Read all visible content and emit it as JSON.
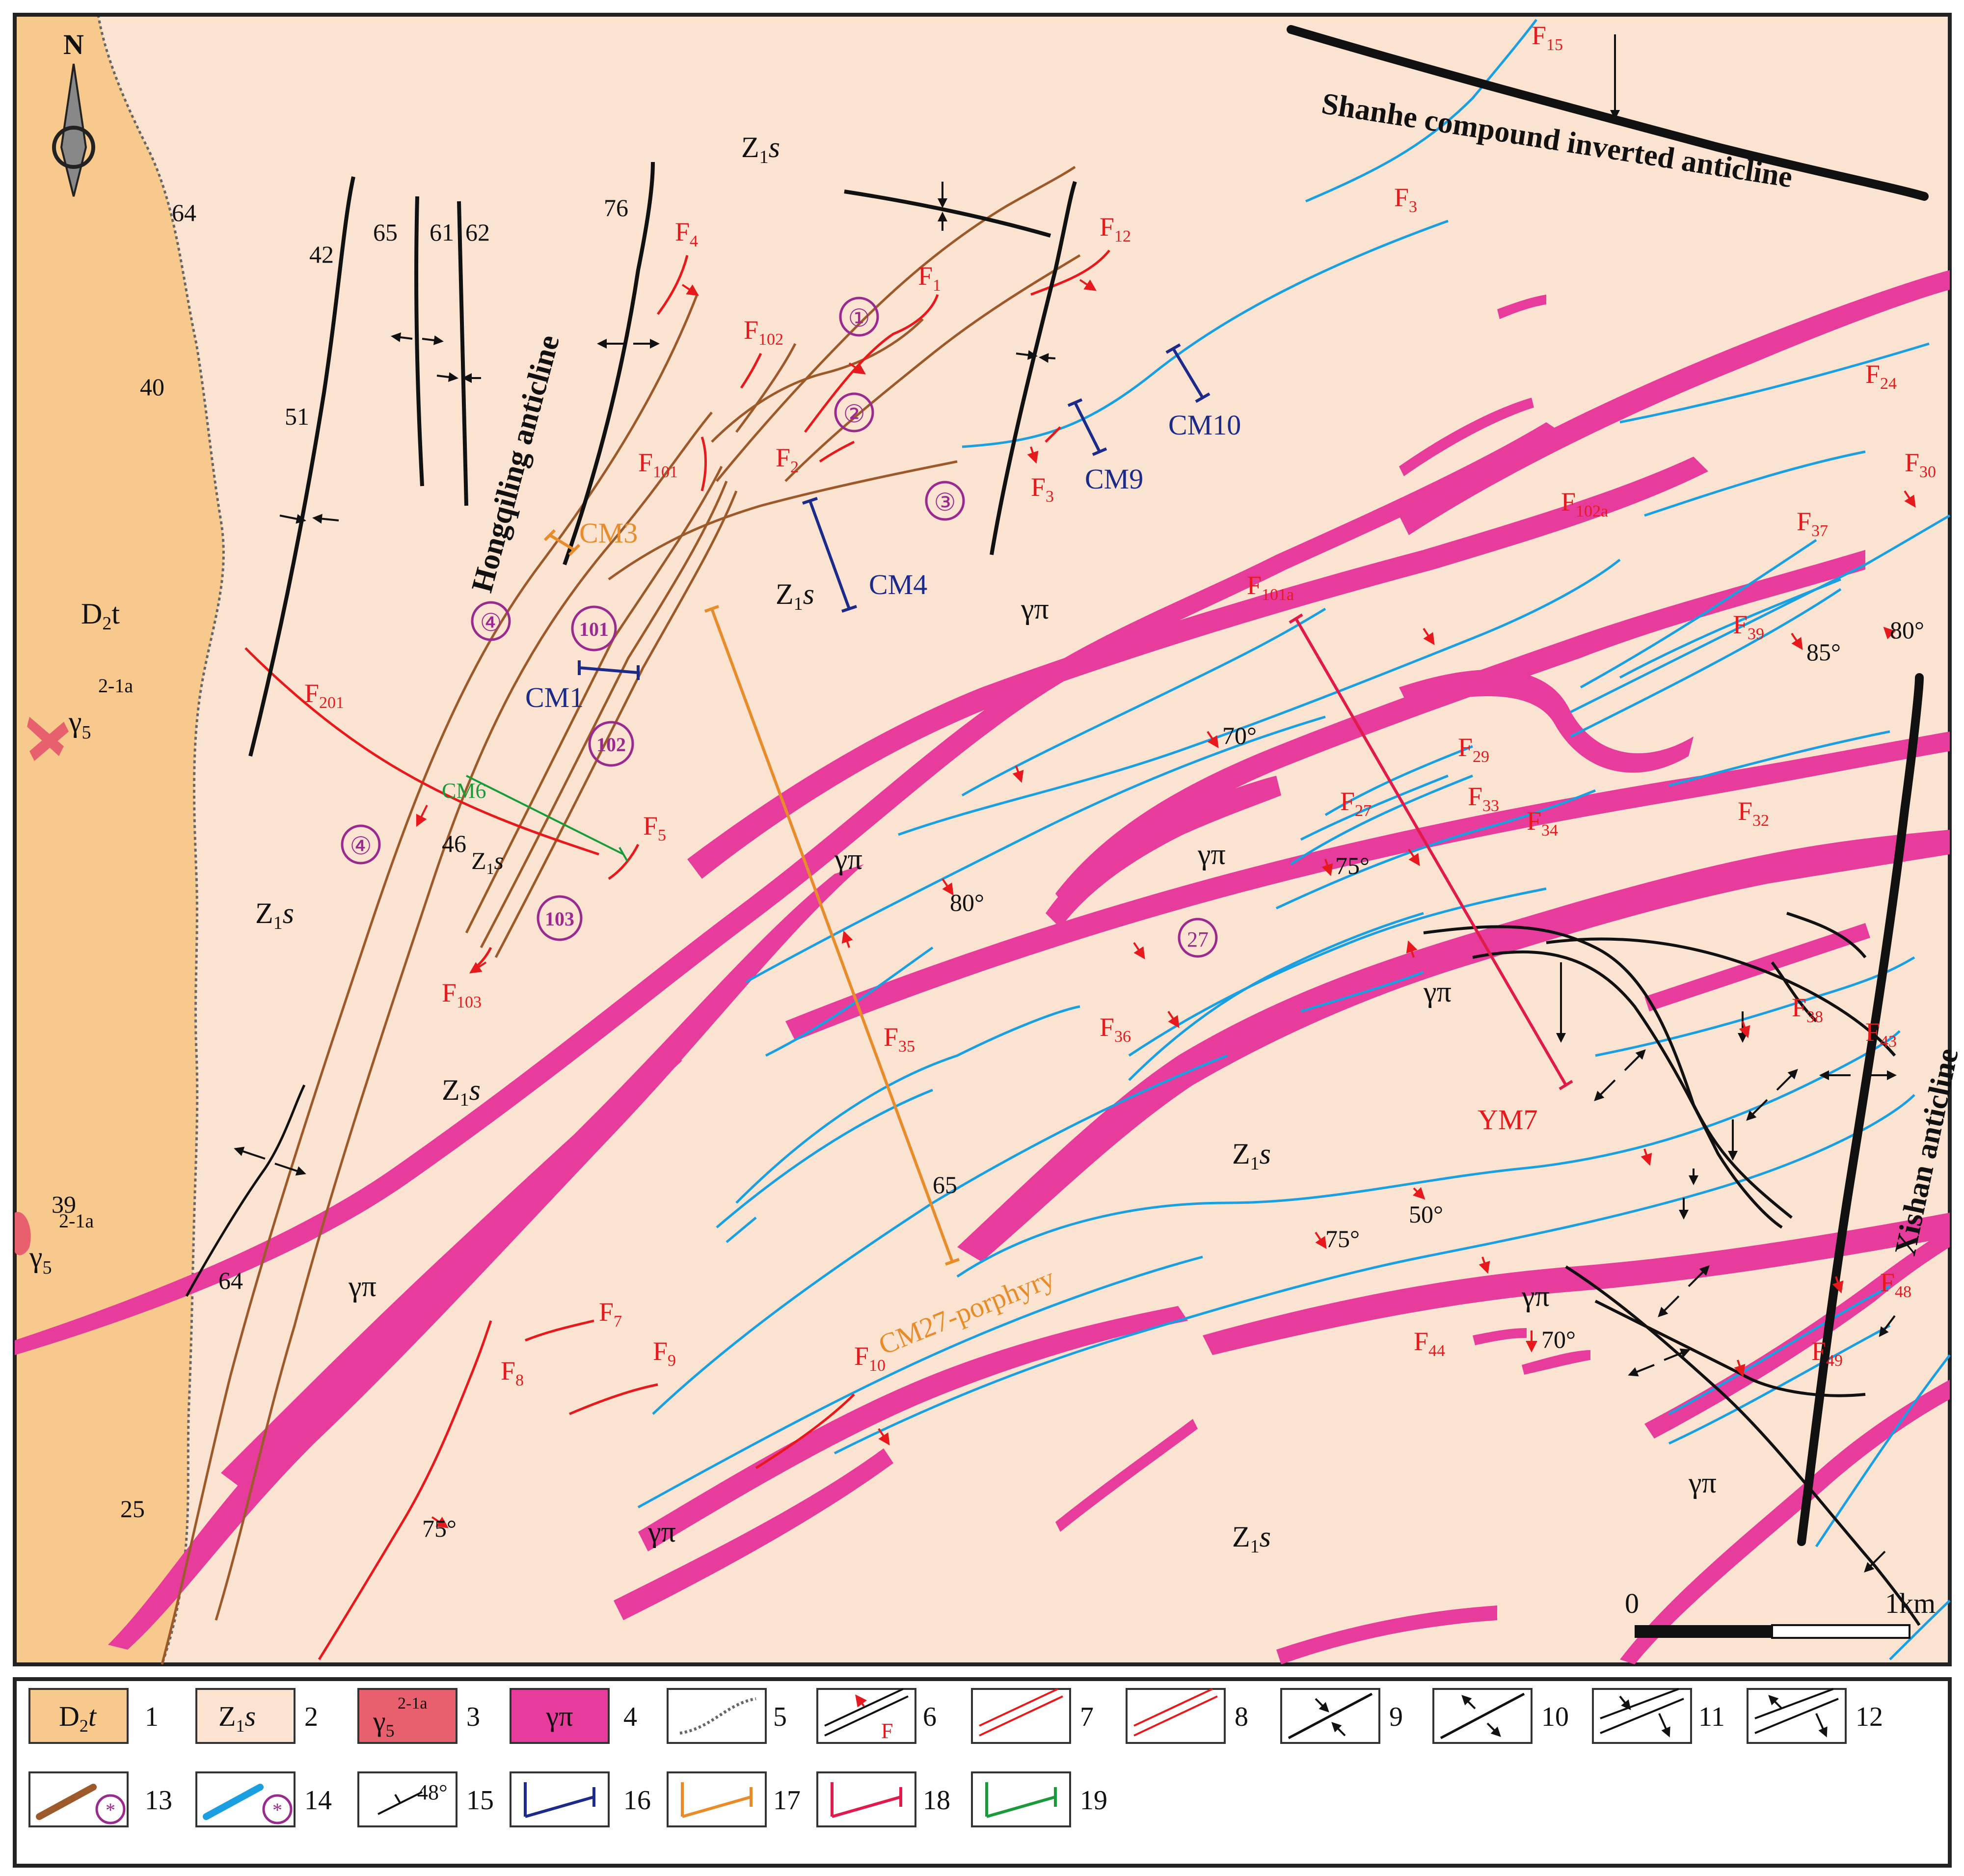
{
  "colors": {
    "d2t": "#f7c98c",
    "z1s": "#fbe3d2",
    "granite": "#e8606e",
    "porphyry": "#e83c9c",
    "ductile": "#9c5a2a",
    "brittle": "#1a9fe0",
    "fault_red": "#e8191c",
    "profile_blue": "#1c2a8a",
    "profile_orange": "#e88c2a",
    "profile_red": "#e01a4a",
    "profile_green": "#1a9a3a"
  },
  "map": {
    "north": "N",
    "units": {
      "d2t_label": "D",
      "d2t_sub": "2",
      "d2t_rest": "t",
      "z1s_main": "Z",
      "z1s_sub": "1",
      "z1s_s": "s",
      "gamma": "γ",
      "gamma_sub": "5",
      "gamma_sup": "2-1a",
      "gamma_pi": "γπ"
    },
    "structures": {
      "shanhe": "Shanhe compound inverted anticline",
      "hongqiling": "Hongqiling anticline",
      "xishan": "Xishan anticline"
    },
    "faults": {
      "F": "F",
      "f15": "15",
      "f3a": "3",
      "f4": "4",
      "f12": "12",
      "f1": "1",
      "f102": "102",
      "f2": "2",
      "f101": "101",
      "f3b": "3",
      "f24": "24",
      "f102a": "102a",
      "f30": "30",
      "f37": "37",
      "f101a": "101a",
      "f39": "39",
      "f201": "201",
      "f29": "29",
      "f27": "27",
      "f33": "33",
      "f34": "34",
      "f32": "32",
      "f5": "5",
      "f103": "103",
      "f35": "35",
      "f36": "36",
      "f38": "38",
      "f43": "43",
      "f7": "7",
      "f9": "9",
      "f8": "8",
      "f10": "10",
      "f44": "44",
      "f48": "48",
      "f49": "49"
    },
    "circled": [
      "①",
      "②",
      "③",
      "④",
      "④",
      "101",
      "102",
      "103",
      "27"
    ],
    "profiles": {
      "cm3": "CM3",
      "cm4": "CM4",
      "cm1": "CM1",
      "cm6": "CM6",
      "cm9": "CM9",
      "cm10": "CM10",
      "ym7": "YM7",
      "cm27": "CM27-porphyry"
    },
    "attitudes": {
      "a64a": "64",
      "a42": "42",
      "a65": "65",
      "a61": "61",
      "a62": "62",
      "a76": "76",
      "a40": "40",
      "a51": "51",
      "a46": "46",
      "a39": "39",
      "a64b": "64",
      "a25": "25",
      "a65b": "65",
      "d70": "70°",
      "d80a": "80°",
      "d75a": "75°",
      "d85": "85°",
      "d80b": "80°",
      "d75b": "75°",
      "d50": "50°",
      "d70b": "70°",
      "d75c": "75°"
    },
    "scale": {
      "zero": "0",
      "one": "1km"
    }
  },
  "legend": {
    "numbers": [
      "1",
      "2",
      "3",
      "4",
      "5",
      "6",
      "7",
      "8",
      "9",
      "10",
      "11",
      "12",
      "13",
      "14",
      "15",
      "16",
      "17",
      "18",
      "19"
    ],
    "box1_main": "D",
    "box1_sub": "2",
    "box1_rest": "t",
    "box2_main": "Z",
    "box2_sub": "1",
    "box2_rest": "s",
    "box3_main": "γ",
    "box3_sub": "5",
    "box3_sup": "2-1a",
    "box4": "γπ",
    "box6_letter": "F",
    "box13_star": "*",
    "box14_star": "*",
    "box15_dip": "48°"
  }
}
